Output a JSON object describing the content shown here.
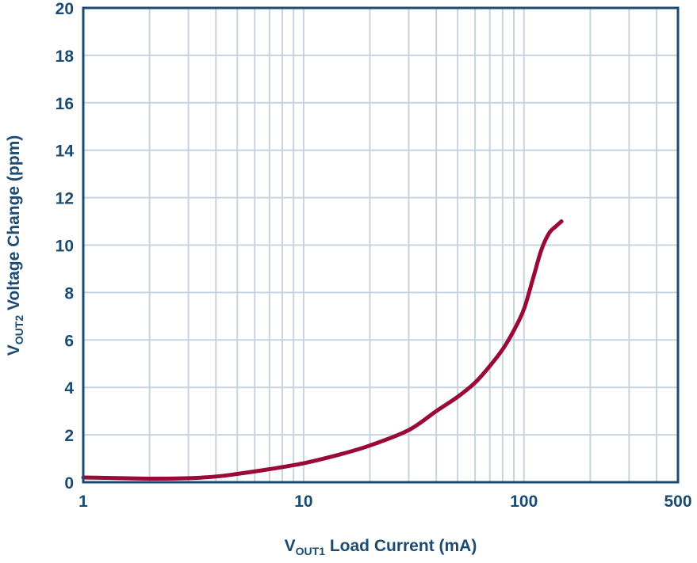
{
  "chart_data": {
    "type": "line",
    "title": "",
    "xlabel": {
      "main": "V",
      "sub": "OUT1",
      "rest": " Load Current (mA)"
    },
    "ylabel": {
      "main": "V",
      "sub": "OUT2",
      "rest": " Voltage Change (ppm)"
    },
    "xscale": "log",
    "xlim": [
      1,
      500
    ],
    "ylim": [
      0,
      20
    ],
    "xticks": [
      1,
      10,
      100,
      500
    ],
    "xtick_labels": [
      "1",
      "10",
      "100",
      "500"
    ],
    "yticks": [
      0,
      2,
      4,
      6,
      8,
      10,
      12,
      14,
      16,
      18,
      20
    ],
    "ytick_labels": [
      "0",
      "2",
      "4",
      "6",
      "8",
      "10",
      "12",
      "14",
      "16",
      "18",
      "20"
    ],
    "grid": true,
    "series": [
      {
        "x": [
          1,
          1.5,
          2,
          3,
          4,
          5,
          7,
          10,
          15,
          20,
          30,
          40,
          50,
          60,
          70,
          80,
          90,
          100,
          110,
          120,
          130,
          140,
          148
        ],
        "y": [
          0.2,
          0.17,
          0.15,
          0.17,
          0.24,
          0.35,
          0.55,
          0.8,
          1.2,
          1.55,
          2.2,
          3.0,
          3.6,
          4.2,
          4.9,
          5.6,
          6.4,
          7.3,
          8.6,
          9.8,
          10.5,
          10.8,
          11.0
        ]
      }
    ],
    "colors": {
      "axis": "#1b4a72",
      "grid": "#c6d3df",
      "line": "#9b0a37",
      "text": "#1b4a72"
    }
  }
}
